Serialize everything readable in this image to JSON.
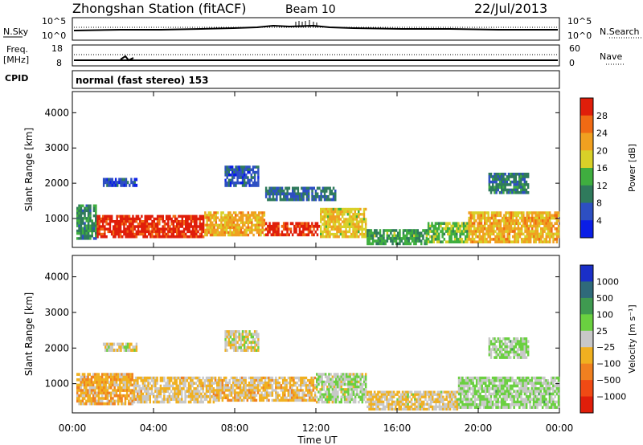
{
  "header": {
    "title": "Zhongshan Station (fitACF)",
    "beam": "Beam 10",
    "date": "22/Jul/2013"
  },
  "strip_nsky": {
    "left_label": "N.Sky",
    "left_ticks": [
      "10^5",
      "10^0"
    ],
    "right_label": "N.Search",
    "right_ticks": [
      "10^5",
      "10^0"
    ]
  },
  "strip_freq": {
    "left_label_1": "Freq.",
    "left_label_2": "[MHz]",
    "left_ticks": [
      "18",
      "8"
    ],
    "right_label": "Nave",
    "right_ticks": [
      "60",
      "0"
    ]
  },
  "cpid": {
    "label": "CPID",
    "text": "normal (fast stereo) 153"
  },
  "chart_data": [
    {
      "type": "heatmap",
      "panel": "power",
      "xlabel": "Time UT",
      "ylabel": "Slant Range [km]",
      "x_ticks": [
        "00:00",
        "04:00",
        "08:00",
        "12:00",
        "16:00",
        "20:00",
        "00:00"
      ],
      "x_range_hours": [
        0,
        24
      ],
      "y_ticks": [
        1000,
        2000,
        3000,
        4000
      ],
      "ylim": [
        180,
        4600
      ],
      "colorbar": {
        "label": "Power [dB]",
        "ticks": [
          "4",
          "8",
          "12",
          "16",
          "20",
          "24",
          "28"
        ],
        "range": [
          0,
          30
        ],
        "colors": [
          "#0a1ee6",
          "#2d4fc2",
          "#2f7a5c",
          "#3fae3f",
          "#d9d028",
          "#f0a020",
          "#f06a14",
          "#e01e0a"
        ]
      },
      "regions": [
        {
          "t0": 0.2,
          "t1": 1.2,
          "r0": 400,
          "r1": 1400,
          "value": 10
        },
        {
          "t0": 1.2,
          "t1": 6.5,
          "r0": 450,
          "r1": 1100,
          "value": 28
        },
        {
          "t0": 6.5,
          "t1": 9.5,
          "r0": 500,
          "r1": 1200,
          "value": 20
        },
        {
          "t0": 9.5,
          "t1": 12.2,
          "r0": 500,
          "r1": 900,
          "value": 28
        },
        {
          "t0": 12.2,
          "t1": 14.5,
          "r0": 450,
          "r1": 1300,
          "value": 18
        },
        {
          "t0": 14.5,
          "t1": 17.5,
          "r0": 250,
          "r1": 700,
          "value": 12
        },
        {
          "t0": 17.5,
          "t1": 19.5,
          "r0": 300,
          "r1": 900,
          "value": 14
        },
        {
          "t0": 19.5,
          "t1": 24.0,
          "r0": 300,
          "r1": 1200,
          "value": 20
        },
        {
          "t0": 7.5,
          "t1": 9.2,
          "r0": 1900,
          "r1": 2500,
          "value": 6
        },
        {
          "t0": 1.5,
          "t1": 3.2,
          "r0": 1900,
          "r1": 2150,
          "value": 5
        },
        {
          "t0": 20.5,
          "t1": 22.5,
          "r0": 1700,
          "r1": 2300,
          "value": 9
        },
        {
          "t0": 9.5,
          "t1": 13.0,
          "r0": 1500,
          "r1": 1900,
          "value": 8
        }
      ]
    },
    {
      "type": "heatmap",
      "panel": "velocity",
      "xlabel": "Time UT",
      "ylabel": "Slant Range [km]",
      "x_ticks": [
        "00:00",
        "04:00",
        "08:00",
        "12:00",
        "16:00",
        "20:00",
        "00:00"
      ],
      "x_range_hours": [
        0,
        24
      ],
      "y_ticks": [
        1000,
        2000,
        3000,
        4000
      ],
      "ylim": [
        180,
        4600
      ],
      "colorbar": {
        "label": "Velocity [m s⁻¹]",
        "ticks": [
          "1000",
          "500",
          "100",
          "25",
          "−25",
          "−100",
          "−500",
          "−1000"
        ],
        "range": [
          -1250,
          1250
        ],
        "colors": [
          "#1a2fc8",
          "#2f6a7a",
          "#3f9a50",
          "#6ad040",
          "#c8c8c8",
          "#f0b020",
          "#f08020",
          "#f04a14",
          "#e01e0a"
        ]
      },
      "regions": [
        {
          "t0": 0.2,
          "t1": 3.0,
          "r0": 400,
          "r1": 1300,
          "value": -300
        },
        {
          "t0": 3.0,
          "t1": 7.0,
          "r0": 450,
          "r1": 1200,
          "value": -150
        },
        {
          "t0": 7.0,
          "t1": 12.0,
          "r0": 500,
          "r1": 1200,
          "value": -200
        },
        {
          "t0": 12.0,
          "t1": 14.5,
          "r0": 450,
          "r1": 1300,
          "value": 80
        },
        {
          "t0": 14.5,
          "t1": 19.0,
          "r0": 250,
          "r1": 800,
          "value": -120
        },
        {
          "t0": 19.0,
          "t1": 24.0,
          "r0": 300,
          "r1": 1200,
          "value": 150
        },
        {
          "t0": 7.5,
          "t1": 9.2,
          "r0": 1900,
          "r1": 2500,
          "value": 0
        },
        {
          "t0": 1.5,
          "t1": 3.2,
          "r0": 1900,
          "r1": 2150,
          "value": 10
        },
        {
          "t0": 20.5,
          "t1": 22.5,
          "r0": 1700,
          "r1": 2300,
          "value": 150
        }
      ]
    }
  ]
}
